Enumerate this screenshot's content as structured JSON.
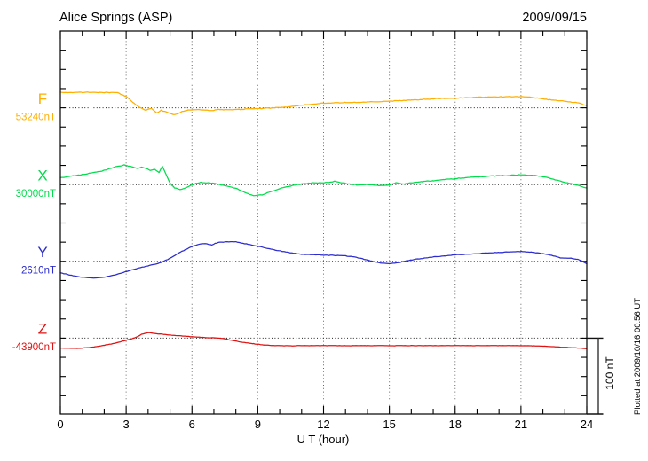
{
  "header": {
    "station": "Alice Springs (ASP)",
    "date": "2009/09/15"
  },
  "axes": {
    "xlabel": "U T (hour)",
    "x_ticks": [
      0,
      3,
      6,
      9,
      12,
      15,
      18,
      21,
      24
    ],
    "xlim": [
      0,
      24
    ],
    "minor_tick_step_hours": 1,
    "y_minor_tick_nT": 25
  },
  "scale_bar": {
    "label": "100 nT",
    "span_nT": 100
  },
  "annotations": {
    "plotted_note": "Plotted at 2009/10/16 00:56 UT"
  },
  "chart_data": {
    "type": "line",
    "title": "Alice Springs (ASP)",
    "date": "2009/09/15",
    "xlabel": "U T (hour)",
    "xlim": [
      0,
      24
    ],
    "x_ticks": [
      0,
      3,
      6,
      9,
      12,
      15,
      18,
      21,
      24
    ],
    "grid": "dotted vertical gridlines every 3 h; dotted horizontal baseline per channel",
    "channel_spacing_nT": 100,
    "points_units": "[hour UT, offset in nT from channel base value]",
    "series": [
      {
        "name": "F",
        "base_label": "53240nT",
        "base_nT": 53240,
        "color": "#FFAE00",
        "points": [
          [
            0,
            20
          ],
          [
            1,
            20.2
          ],
          [
            2,
            20
          ],
          [
            2.6,
            19.8
          ],
          [
            3,
            15
          ],
          [
            3.3,
            7
          ],
          [
            3.6,
            0.5
          ],
          [
            3.9,
            -3
          ],
          [
            4.15,
            -1
          ],
          [
            4.4,
            -7
          ],
          [
            4.6,
            -3.3
          ],
          [
            4.9,
            -6
          ],
          [
            5.15,
            -9
          ],
          [
            5.3,
            -8.5
          ],
          [
            5.55,
            -5
          ],
          [
            5.75,
            -3.3
          ],
          [
            6.2,
            -2.5
          ],
          [
            6.6,
            -2.8
          ],
          [
            6.9,
            -3.8
          ],
          [
            7.2,
            -2.3
          ],
          [
            7.7,
            -2.5
          ],
          [
            8.2,
            -2.3
          ],
          [
            8.6,
            -1.2
          ],
          [
            9,
            -1
          ],
          [
            9.5,
            -0.5
          ],
          [
            10,
            0.5
          ],
          [
            10.5,
            1.5
          ],
          [
            11,
            3.5
          ],
          [
            11.5,
            4.5
          ],
          [
            12,
            6
          ],
          [
            12.5,
            6.5
          ],
          [
            13,
            6.8
          ],
          [
            13.5,
            7
          ],
          [
            14,
            7.5
          ],
          [
            14.5,
            8
          ],
          [
            15,
            8.5
          ],
          [
            15.5,
            9.5
          ],
          [
            16,
            10.2
          ],
          [
            16.5,
            11
          ],
          [
            17,
            11.8
          ],
          [
            17.5,
            12.2
          ],
          [
            18,
            12.5
          ],
          [
            18.5,
            13.2
          ],
          [
            19,
            13.8
          ],
          [
            19.5,
            14
          ],
          [
            20,
            14.3
          ],
          [
            20.5,
            14.5
          ],
          [
            21,
            14.5
          ],
          [
            21.5,
            13.8
          ],
          [
            22,
            11.5
          ],
          [
            22.5,
            10
          ],
          [
            23,
            8.5
          ],
          [
            23.4,
            7
          ],
          [
            23.7,
            6
          ],
          [
            24,
            2.5
          ]
        ]
      },
      {
        "name": "X",
        "base_label": "30000nT",
        "base_nT": 30000,
        "color": "#00DC4B",
        "points": [
          [
            0,
            9
          ],
          [
            0.5,
            11
          ],
          [
            1,
            13
          ],
          [
            1.5,
            15.5
          ],
          [
            2,
            18.5
          ],
          [
            2.5,
            23
          ],
          [
            2.9,
            25.5
          ],
          [
            3.1,
            24
          ],
          [
            3.3,
            23
          ],
          [
            3.5,
            21
          ],
          [
            3.7,
            22.5
          ],
          [
            3.9,
            21
          ],
          [
            4.1,
            18.5
          ],
          [
            4.3,
            20
          ],
          [
            4.5,
            15.5
          ],
          [
            4.65,
            24
          ],
          [
            4.8,
            14.5
          ],
          [
            5,
            2
          ],
          [
            5.2,
            -4
          ],
          [
            5.45,
            -6.5
          ],
          [
            5.65,
            -5
          ],
          [
            5.8,
            -3
          ],
          [
            6.1,
            0.7
          ],
          [
            6.4,
            3
          ],
          [
            6.7,
            2.3
          ],
          [
            7,
            1.5
          ],
          [
            7.5,
            -1.2
          ],
          [
            8,
            -4.6
          ],
          [
            8.4,
            -10
          ],
          [
            8.8,
            -14.4
          ],
          [
            9.2,
            -13.2
          ],
          [
            9.6,
            -9.3
          ],
          [
            10,
            -5.1
          ],
          [
            10.5,
            -1.6
          ],
          [
            11,
            0.7
          ],
          [
            11.5,
            2.3
          ],
          [
            12,
            1.9
          ],
          [
            12.5,
            4.2
          ],
          [
            13,
            1.5
          ],
          [
            13.5,
            -0.5
          ],
          [
            14,
            0.3
          ],
          [
            14.5,
            -1.2
          ],
          [
            15,
            -0.8
          ],
          [
            15.3,
            2.3
          ],
          [
            15.6,
            0.7
          ],
          [
            16,
            2.3
          ],
          [
            16.5,
            3.8
          ],
          [
            17,
            5
          ],
          [
            17.5,
            6.5
          ],
          [
            18,
            7.7
          ],
          [
            18.5,
            8.8
          ],
          [
            19,
            10
          ],
          [
            19.5,
            10.8
          ],
          [
            20,
            11.6
          ],
          [
            20.5,
            11.9
          ],
          [
            21,
            12.7
          ],
          [
            21.5,
            12.3
          ],
          [
            22,
            10.4
          ],
          [
            22.4,
            7.7
          ],
          [
            22.8,
            4.2
          ],
          [
            23.2,
            1.9
          ],
          [
            23.6,
            -0.8
          ],
          [
            24,
            -4.6
          ]
        ]
      },
      {
        "name": "Y",
        "base_label": "2610nT",
        "base_nT": 2610,
        "color": "#2B2BCE",
        "points": [
          [
            0,
            -15
          ],
          [
            0.5,
            -18.2
          ],
          [
            1,
            -20.9
          ],
          [
            1.5,
            -22
          ],
          [
            2,
            -20.5
          ],
          [
            2.5,
            -17.8
          ],
          [
            3,
            -13.2
          ],
          [
            3.5,
            -9.3
          ],
          [
            4,
            -5.8
          ],
          [
            4.5,
            -2.3
          ],
          [
            4.9,
            2.3
          ],
          [
            5.3,
            9.3
          ],
          [
            5.7,
            15.4
          ],
          [
            6,
            19.2
          ],
          [
            6.3,
            22.4
          ],
          [
            6.6,
            23.2
          ],
          [
            6.9,
            21.6
          ],
          [
            7.2,
            24.7
          ],
          [
            7.6,
            25.5
          ],
          [
            8,
            25.5
          ],
          [
            8.4,
            23.2
          ],
          [
            8.8,
            20.9
          ],
          [
            9.2,
            18.5
          ],
          [
            9.8,
            14.6
          ],
          [
            10.4,
            11.6
          ],
          [
            11,
            9.3
          ],
          [
            12,
            8.1
          ],
          [
            13,
            7.3
          ],
          [
            13.6,
            4.6
          ],
          [
            14.2,
            0.3
          ],
          [
            14.6,
            -2
          ],
          [
            15,
            -3.1
          ],
          [
            15.4,
            -1.6
          ],
          [
            15.8,
            0.7
          ],
          [
            16.2,
            2.7
          ],
          [
            16.6,
            4.2
          ],
          [
            17,
            5.8
          ],
          [
            17.5,
            7
          ],
          [
            18,
            8.5
          ],
          [
            18.5,
            9.3
          ],
          [
            19,
            10
          ],
          [
            19.5,
            10.8
          ],
          [
            20,
            11.6
          ],
          [
            20.5,
            12.3
          ],
          [
            21,
            12.7
          ],
          [
            21.5,
            11.9
          ],
          [
            22,
            10
          ],
          [
            22.4,
            7.7
          ],
          [
            22.8,
            4.6
          ],
          [
            23.2,
            4.2
          ],
          [
            23.6,
            2.7
          ],
          [
            24,
            -3.1
          ]
        ]
      },
      {
        "name": "Z",
        "base_label": "-43900nT",
        "base_nT": -43900,
        "color": "#E01010",
        "points": [
          [
            0,
            -13.1
          ],
          [
            0.5,
            -13.2
          ],
          [
            1,
            -13.1
          ],
          [
            1.5,
            -11.6
          ],
          [
            2,
            -9.3
          ],
          [
            2.5,
            -6.6
          ],
          [
            3,
            -2.7
          ],
          [
            3.4,
            0.3
          ],
          [
            3.7,
            5
          ],
          [
            4,
            7.3
          ],
          [
            4.3,
            6.1
          ],
          [
            4.7,
            5
          ],
          [
            5.1,
            3.8
          ],
          [
            5.6,
            2.7
          ],
          [
            6.1,
            1.5
          ],
          [
            6.6,
            0.8
          ],
          [
            7,
            0.3
          ],
          [
            7.4,
            -0.3
          ],
          [
            7.8,
            -2.7
          ],
          [
            8.3,
            -5.4
          ],
          [
            8.8,
            -7.3
          ],
          [
            9.3,
            -8.9
          ],
          [
            9.8,
            -9.7
          ],
          [
            10.5,
            -10
          ],
          [
            11.2,
            -9.8
          ],
          [
            12,
            -9.7
          ],
          [
            13,
            -9.9
          ],
          [
            14,
            -9.7
          ],
          [
            15,
            -9.9
          ],
          [
            16,
            -9.7
          ],
          [
            17,
            -9.8
          ],
          [
            18,
            -9.7
          ],
          [
            19,
            -9.8
          ],
          [
            20,
            -9.7
          ],
          [
            21,
            -9.7
          ],
          [
            21.5,
            -10
          ],
          [
            22,
            -10.4
          ],
          [
            22.5,
            -11.2
          ],
          [
            23,
            -12
          ],
          [
            23.5,
            -12.7
          ],
          [
            24,
            -13.5
          ]
        ]
      }
    ]
  }
}
